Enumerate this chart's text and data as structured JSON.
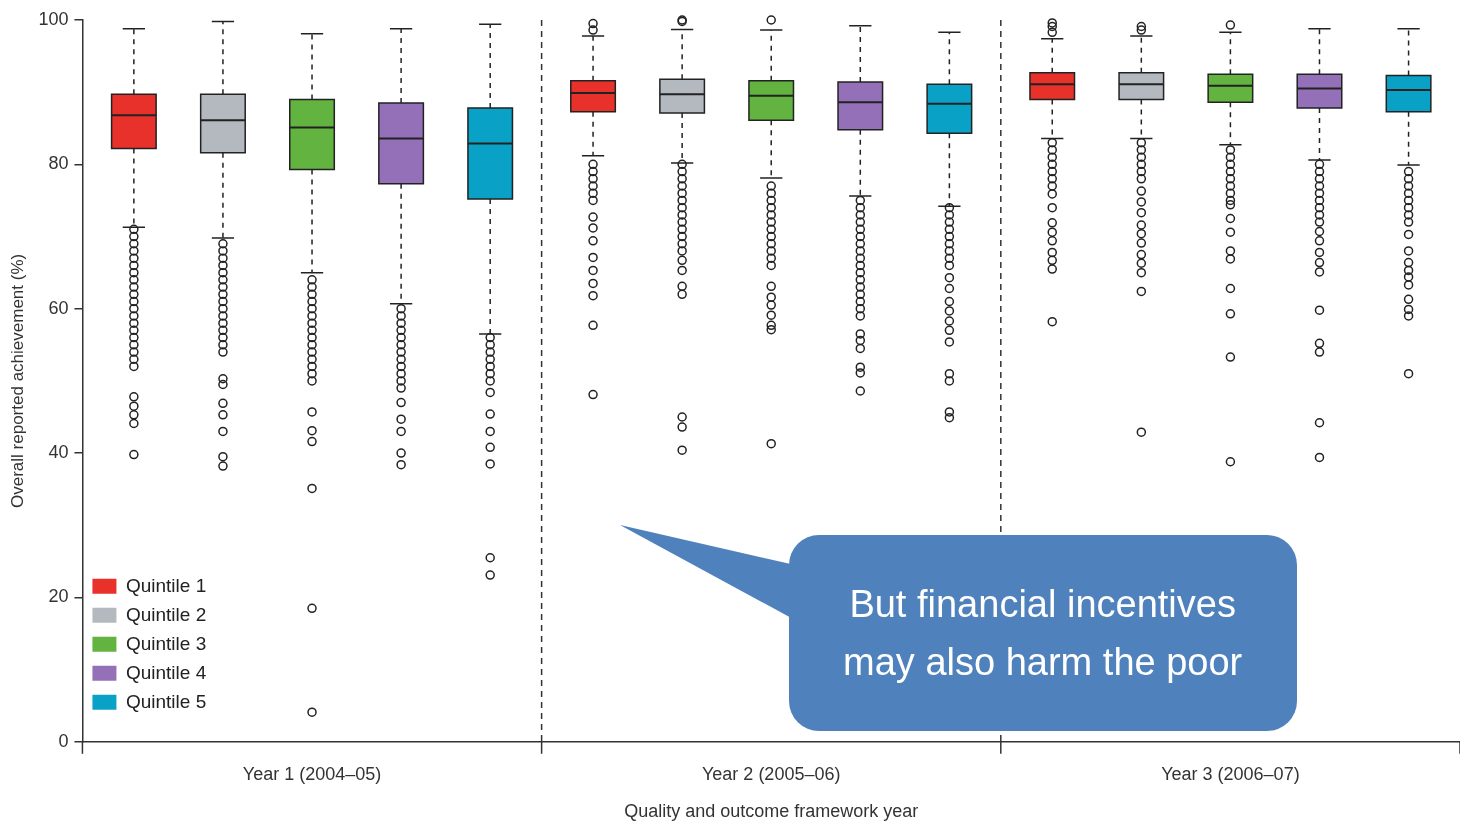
{
  "chart_data": {
    "type": "box",
    "xlabel": "Quality and outcome framework year",
    "ylabel": "Overall reported achievement (%)",
    "categories": [
      "Year 1 (2004–05)",
      "Year 2 (2005–06)",
      "Year 3 (2006–07)"
    ],
    "ylim": [
      0,
      100
    ],
    "yticks": [
      0,
      20,
      40,
      60,
      80,
      100
    ],
    "grid": "x",
    "legend": "bottom left",
    "annotations": [
      "But financial incentives may also harm the poor"
    ],
    "series": [
      {
        "name": "Quintile 1",
        "color": "#e8312a",
        "boxes": [
          {
            "low": 71.3,
            "q1": 82.2,
            "median": 86.8,
            "q3": 89.7,
            "high": 98.8,
            "outliers": [
              71,
              70,
              69,
              68,
              67,
              66,
              65,
              64,
              63,
              62,
              61,
              60,
              59,
              58,
              57,
              56,
              55,
              54,
              53,
              52,
              47.8,
              46.5,
              45.3,
              44.1,
              39.8
            ]
          },
          {
            "low": 81.2,
            "q1": 87.3,
            "median": 89.9,
            "q3": 91.6,
            "high": 97.8,
            "outliers": [
              99.5,
              98.6,
              80,
              79,
              78,
              77,
              76,
              75,
              72.7,
              71.2,
              69.4,
              67.1,
              65.3,
              63.5,
              61.8,
              57.7,
              48.1
            ]
          },
          {
            "low": 83.6,
            "q1": 89.0,
            "median": 91.1,
            "q3": 92.7,
            "high": 97.4,
            "outliers": [
              99.6,
              99.1,
              98.3,
              83,
              82,
              81,
              80,
              79,
              78,
              77.0,
              75.9,
              74.0,
              71.9,
              70.6,
              69.4,
              67.8,
              66.7,
              65.5,
              58.2
            ]
          }
        ]
      },
      {
        "name": "Quintile 2",
        "color": "#b4b9bf",
        "boxes": [
          {
            "low": 69.8,
            "q1": 81.6,
            "median": 86.1,
            "q3": 89.7,
            "high": 99.8,
            "outliers": [
              69,
              68,
              67,
              66,
              65,
              64,
              63,
              62,
              61,
              60,
              59,
              58,
              57,
              56,
              55,
              54,
              50.3,
              49.5,
              46.9,
              45.3,
              43.0,
              39.5,
              38.2
            ]
          },
          {
            "low": 80.2,
            "q1": 87.1,
            "median": 89.7,
            "q3": 91.8,
            "high": 98.7,
            "outliers": [
              100,
              99.8,
              80,
              79,
              78,
              77,
              76,
              75,
              74,
              73,
              72,
              71,
              70,
              69,
              68,
              66.7,
              65.3,
              63.1,
              62.0,
              45.0,
              43.6,
              40.4
            ]
          },
          {
            "low": 83.6,
            "q1": 89.0,
            "median": 91.1,
            "q3": 92.7,
            "high": 97.8,
            "outliers": [
              99.1,
              98.6,
              83,
              82,
              81,
              80,
              79,
              78,
              76.3,
              74.8,
              73.3,
              71.6,
              70.4,
              69.1,
              67.5,
              66.3,
              65.0,
              62.4,
              42.9
            ]
          }
        ]
      },
      {
        "name": "Quintile 3",
        "color": "#62b33f",
        "boxes": [
          {
            "low": 65.0,
            "q1": 79.3,
            "median": 85.1,
            "q3": 89.0,
            "high": 98.1,
            "outliers": [
              64,
              63,
              62,
              61,
              60,
              59,
              58,
              57,
              56,
              55,
              54,
              53,
              52,
              51,
              50,
              45.7,
              43.1,
              41.6,
              35.1,
              18.5,
              4.1
            ]
          },
          {
            "low": 78.1,
            "q1": 86.1,
            "median": 89.5,
            "q3": 91.6,
            "high": 98.6,
            "outliers": [
              100,
              77,
              76,
              75,
              74,
              73,
              72,
              71,
              70,
              69,
              68,
              67,
              66,
              63.1,
              61.6,
              60.5,
              59.1,
              57.7,
              57.1,
              41.3
            ]
          },
          {
            "low": 82.7,
            "q1": 88.6,
            "median": 90.9,
            "q3": 92.5,
            "high": 98.3,
            "outliers": [
              99.3,
              82,
              81,
              80,
              79,
              78,
              77,
              76,
              75,
              74.4,
              72.5,
              70.6,
              68.0,
              66.9,
              62.8,
              59.3,
              53.3,
              38.8
            ]
          }
        ]
      },
      {
        "name": "Quintile 4",
        "color": "#9370b8",
        "boxes": [
          {
            "low": 60.7,
            "q1": 77.3,
            "median": 83.6,
            "q3": 88.5,
            "high": 98.8,
            "outliers": [
              60,
              59,
              58,
              57,
              56,
              55,
              54,
              53,
              52,
              51,
              50,
              49,
              47.0,
              44.7,
              43.0,
              40.0,
              38.4
            ]
          },
          {
            "low": 75.6,
            "q1": 84.8,
            "median": 88.6,
            "q3": 91.4,
            "high": 99.2,
            "outliers": [
              75,
              74,
              73,
              72,
              71,
              70,
              69,
              68,
              67,
              66,
              65,
              64,
              63,
              62,
              61,
              60,
              59,
              56.5,
              55.6,
              54.5,
              51.9,
              51.1,
              48.6
            ]
          },
          {
            "low": 80.6,
            "q1": 87.8,
            "median": 90.5,
            "q3": 92.5,
            "high": 98.8,
            "outliers": [
              80,
              79,
              78,
              77,
              76,
              75,
              74,
              73,
              72,
              70.7,
              69.4,
              67.8,
              66.4,
              65.1,
              59.8,
              55.2,
              54.0,
              44.2,
              39.4
            ]
          }
        ]
      },
      {
        "name": "Quintile 5",
        "color": "#0aa1c7",
        "boxes": [
          {
            "low": 56.5,
            "q1": 75.2,
            "median": 82.9,
            "q3": 87.8,
            "high": 99.4,
            "outliers": [
              56,
              55,
              54,
              53,
              52,
              51,
              50,
              48.4,
              45.4,
              43.0,
              40.8,
              38.5,
              25.5,
              23.1
            ]
          },
          {
            "low": 74.2,
            "q1": 84.3,
            "median": 88.4,
            "q3": 91.1,
            "high": 98.3,
            "outliers": [
              74,
              73,
              72,
              71,
              70,
              69,
              68,
              67,
              66,
              64.3,
              62.8,
              61.0,
              59.7,
              58.3,
              57.0,
              55.4,
              51.0,
              50.0,
              45.7,
              44.9
            ]
          },
          {
            "low": 79.9,
            "q1": 87.3,
            "median": 90.3,
            "q3": 92.3,
            "high": 98.8,
            "outliers": [
              79,
              78,
              77,
              76,
              75,
              74,
              73,
              72,
              70.3,
              68.0,
              66.4,
              65.3,
              64.4,
              63.3,
              61.3,
              59.9,
              59.0,
              51.0
            ]
          }
        ]
      }
    ]
  }
}
